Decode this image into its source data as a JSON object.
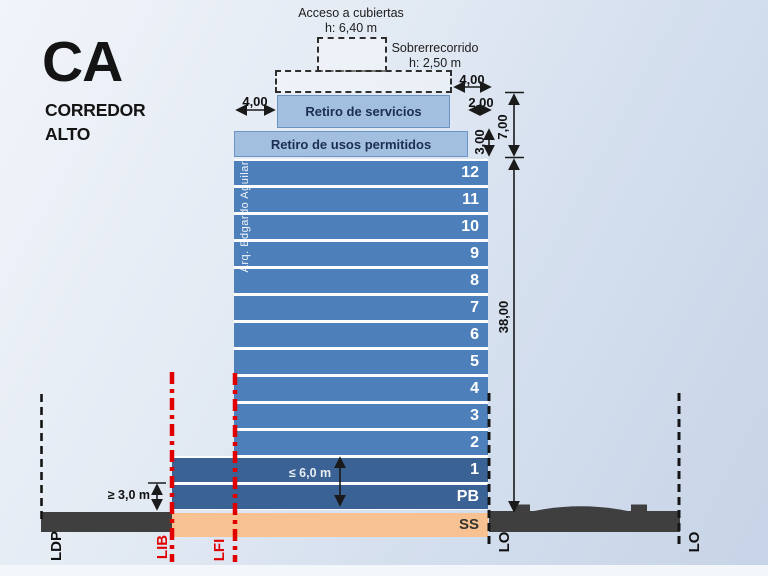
{
  "title": {
    "code": "CA",
    "name_line1": "CORREDOR",
    "name_line2": "ALTO"
  },
  "roof": {
    "acceso_label": "Acceso a cubiertas",
    "acceso_height": "h: 6,40 m",
    "sobre_label": "Sobrerrecorrido",
    "sobre_height": "h: 2,50 m"
  },
  "building": {
    "retiro_servicios": "Retiro de servicios",
    "retiro_usos": "Retiro de usos permitidos",
    "tower_floors": [
      "12",
      "11",
      "10",
      "9",
      "8",
      "7",
      "6",
      "5",
      "4",
      "3",
      "2"
    ],
    "base_floors": [
      "1",
      "PB"
    ],
    "basement_label": "SS",
    "watermark": "Arq. Edgardo Aguilar"
  },
  "dimensions": {
    "left_setback": "4,00",
    "top_setback": "4,00",
    "right_setback": "2,00",
    "usos_height": "3,00",
    "crown_height": "7,00",
    "tower_height": "38,00",
    "min_ground_floor": "≥ 3,0 m",
    "max_base_height": "≤ 6,0 m"
  },
  "boundaries": {
    "ldp": "LDP",
    "lib": "LIB",
    "lfi": "LFI",
    "lo_near": "LO",
    "lo_far": "LO"
  },
  "colors": {
    "tower_blue": "#4d80ba",
    "base_blue": "#3a6294",
    "retiro_fill": "#a2bfdf",
    "retiro_border": "#6b93c4",
    "basement_orange": "#f8c191",
    "ground_gray": "#3f3f3f",
    "boundary_red": "#e10000",
    "dimension_black": "#1a1a1a"
  }
}
